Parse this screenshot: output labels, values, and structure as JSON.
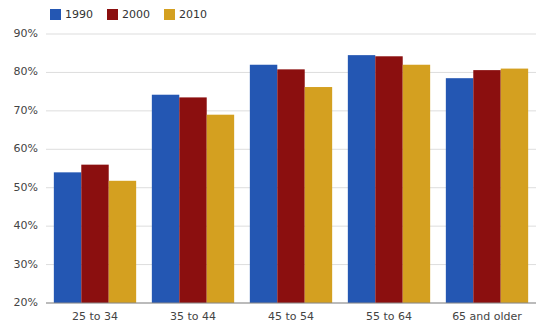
{
  "chart_data": {
    "type": "bar",
    "categories": [
      "25 to 34",
      "35 to 44",
      "45 to 54",
      "55 to 64",
      "65 and older"
    ],
    "series": [
      {
        "name": "1990",
        "color": "#2457B3",
        "values": [
          0.54,
          0.742,
          0.82,
          0.845,
          0.785
        ]
      },
      {
        "name": "2000",
        "color": "#8B0F0F",
        "values": [
          0.56,
          0.735,
          0.808,
          0.842,
          0.806
        ]
      },
      {
        "name": "2010",
        "color": "#D4A020",
        "values": [
          0.518,
          0.69,
          0.762,
          0.82,
          0.81
        ]
      }
    ],
    "ylim": [
      0.2,
      0.9
    ],
    "yticks": [
      {
        "value": 0.2,
        "label": "20%"
      },
      {
        "value": 0.3,
        "label": "30%"
      },
      {
        "value": 0.4,
        "label": "40%"
      },
      {
        "value": 0.5,
        "label": "50%"
      },
      {
        "value": 0.6,
        "label": "60%"
      },
      {
        "value": 0.7,
        "label": "70%"
      },
      {
        "value": 0.8,
        "label": "80%"
      },
      {
        "value": 0.9,
        "label": "90%"
      }
    ],
    "grid": true,
    "legend": "upper left"
  }
}
